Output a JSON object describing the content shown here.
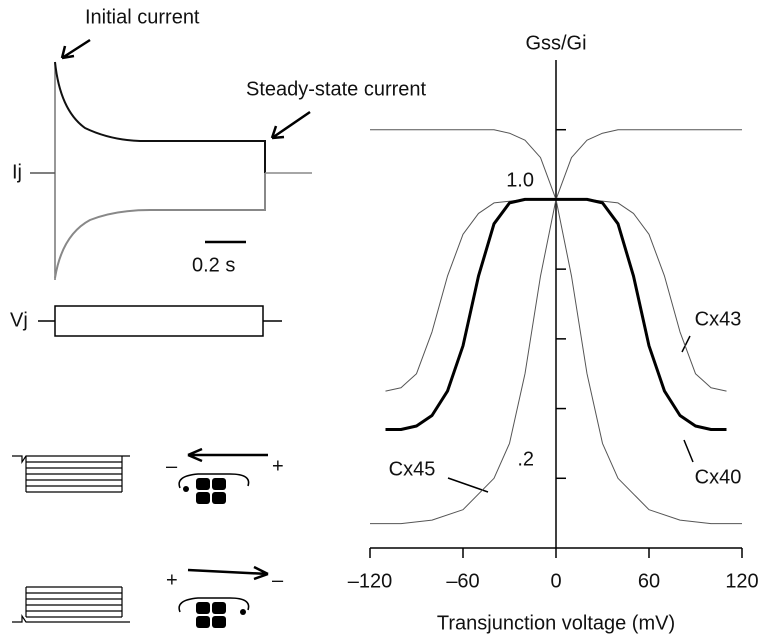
{
  "chart_data": {
    "type": "line",
    "y_axis_label": "Gss/Gi",
    "x_axis_label": "Transjunction voltage (mV)",
    "xlim": [
      -120,
      120
    ],
    "xticks": [
      {
        "value": -120,
        "label": "–120"
      },
      {
        "value": -60,
        "label": "–60"
      },
      0,
      60,
      120
    ],
    "ylim": [
      0,
      1.4
    ],
    "yticks": [
      {
        "value": 1.0,
        "label": "1.0"
      },
      {
        "value": 0.2,
        "label": ".2"
      }
    ],
    "minor_yticks": [
      1.2,
      0.8,
      0.6,
      0.4
    ],
    "series": [
      {
        "color": "#555555",
        "width": 1,
        "x": [
          -120,
          -100,
          -80,
          -60,
          -40,
          -30,
          -20,
          -10,
          0,
          10,
          20,
          30,
          40,
          60,
          80,
          100,
          120
        ],
        "values": [
          0.07,
          0.07,
          0.08,
          0.11,
          0.2,
          0.3,
          0.5,
          0.78,
          1.0,
          1.12,
          1.17,
          1.19,
          1.2,
          1.2,
          1.2,
          1.2,
          1.2
        ]
      },
      {
        "color": "#555555",
        "width": 1,
        "x": [
          -120,
          -100,
          -80,
          -60,
          -40,
          -30,
          -20,
          -10,
          0,
          10,
          20,
          30,
          40,
          60,
          80,
          100,
          120
        ],
        "values": [
          1.2,
          1.2,
          1.2,
          1.2,
          1.2,
          1.19,
          1.17,
          1.12,
          1.0,
          0.78,
          0.5,
          0.3,
          0.2,
          0.11,
          0.08,
          0.07,
          0.07
        ]
      },
      {
        "color": "#555555",
        "width": 1,
        "x": [
          -110,
          -100,
          -90,
          -80,
          -70,
          -60,
          -50,
          -40,
          -20,
          0,
          20,
          40,
          50,
          60,
          70,
          80,
          90,
          100,
          110
        ],
        "values": [
          0.45,
          0.46,
          0.5,
          0.62,
          0.78,
          0.9,
          0.96,
          0.99,
          1.0,
          1.0,
          1.0,
          0.99,
          0.96,
          0.9,
          0.78,
          0.62,
          0.5,
          0.46,
          0.45
        ]
      },
      {
        "color": "#000000",
        "width": 3,
        "x": [
          -110,
          -100,
          -90,
          -80,
          -70,
          -60,
          -50,
          -40,
          -30,
          -20,
          0,
          20,
          30,
          40,
          50,
          60,
          70,
          80,
          90,
          100,
          110
        ],
        "values": [
          0.34,
          0.34,
          0.35,
          0.38,
          0.45,
          0.58,
          0.78,
          0.93,
          0.99,
          1.0,
          1.0,
          1.0,
          0.99,
          0.93,
          0.78,
          0.58,
          0.45,
          0.38,
          0.35,
          0.34,
          0.34
        ]
      }
    ],
    "annotations": [
      "Cx43",
      "Cx40",
      "Cx45"
    ]
  },
  "left_panel": {
    "initial_label": "Initial current",
    "steady_label": "Steady-state current",
    "current_label": "Ij",
    "scale_label": "0.2 s",
    "voltage_label": "Vj",
    "arrow1_left": "–",
    "arrow1_right": "+",
    "arrow2_left": "+",
    "arrow2_right": "–"
  }
}
